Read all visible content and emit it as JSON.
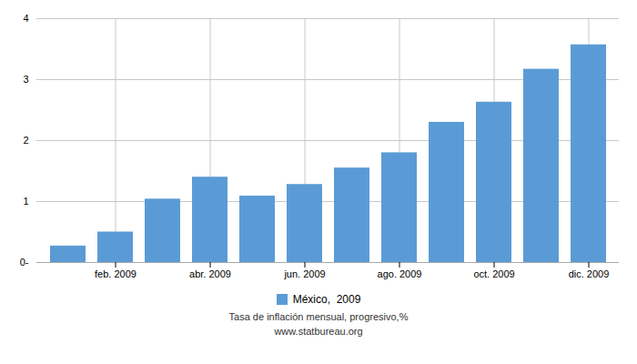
{
  "chart_data": {
    "type": "bar",
    "title": "Tasa de inflación mensual, progresivo,%",
    "subtitle": "www.statbureau.org",
    "categories": [
      null,
      "feb. 2009",
      null,
      "abr. 2009",
      null,
      "jun. 2009",
      null,
      "ago. 2009",
      null,
      "oct. 2009",
      null,
      "dic. 2009"
    ],
    "series": [
      {
        "name": "México,  2009",
        "color": "#5b9bd5",
        "values": [
          0.27,
          0.5,
          1.04,
          1.4,
          1.09,
          1.28,
          1.55,
          1.8,
          2.3,
          2.63,
          3.17,
          3.57
        ]
      }
    ],
    "ylim": [
      0,
      4.0
    ],
    "yticks": [
      {
        "value": 0,
        "label": "0-"
      },
      1,
      2,
      3,
      4
    ],
    "grid": true,
    "legend": "bottom"
  }
}
